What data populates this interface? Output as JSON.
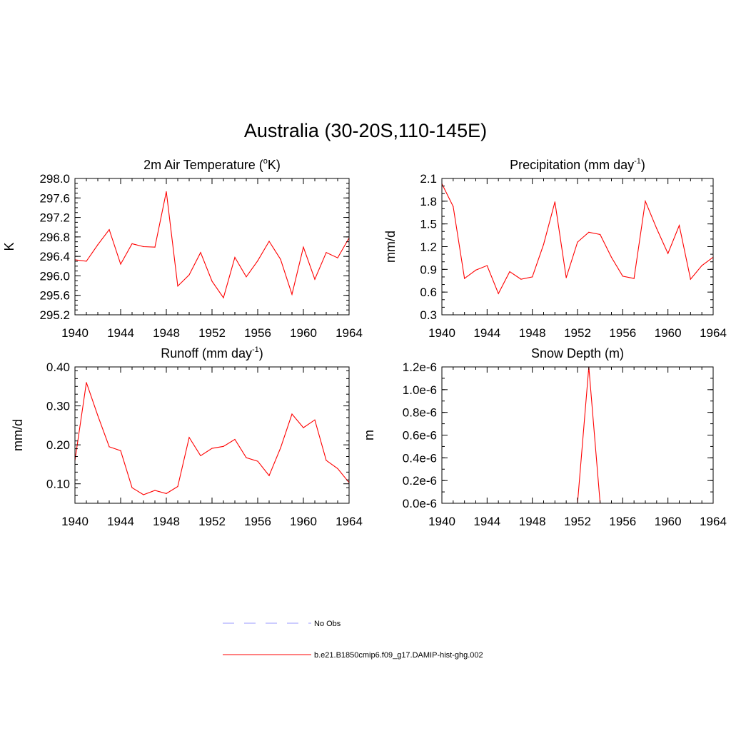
{
  "title": "Australia (30-20S,110-145E)",
  "colors": {
    "series": "#ff0000",
    "obs": "#9999ff",
    "axis": "#000000"
  },
  "chart_data": [
    {
      "type": "line",
      "title_main": "2m Air Temperature (",
      "title_sup": "o",
      "title_tail": "K)",
      "ylabel": "K",
      "xlim": [
        1940,
        1964
      ],
      "ylim": [
        295.2,
        298.0
      ],
      "xticks": [
        1940,
        1944,
        1948,
        1952,
        1956,
        1960,
        1964
      ],
      "xtick_labels": [
        "1940",
        "1944",
        "1948",
        "1952",
        "1956",
        "1960",
        "1964"
      ],
      "yticks": [
        295.2,
        295.6,
        296.0,
        296.4,
        296.8,
        297.2,
        297.6,
        298.0
      ],
      "ytick_labels": [
        "295.2",
        "295.6",
        "296.0",
        "296.4",
        "296.8",
        "297.2",
        "297.6",
        "298.0"
      ],
      "yminor": 0.1,
      "x": [
        1940,
        1941,
        1942,
        1943,
        1944,
        1945,
        1946,
        1947,
        1948,
        1949,
        1950,
        1951,
        1952,
        1953,
        1954,
        1955,
        1956,
        1957,
        1958,
        1959,
        1960,
        1961,
        1962,
        1963,
        1964
      ],
      "values": [
        296.33,
        296.3,
        296.64,
        296.95,
        296.24,
        296.66,
        296.6,
        296.59,
        297.73,
        295.79,
        296.02,
        296.48,
        295.89,
        295.55,
        296.38,
        295.98,
        296.31,
        296.71,
        296.34,
        295.62,
        296.59,
        295.93,
        296.48,
        296.37,
        296.78
      ]
    },
    {
      "type": "line",
      "title_main": "Precipitation (mm day",
      "title_sup": "-1",
      "title_tail": ")",
      "ylabel": "mm/d",
      "xlim": [
        1940,
        1964
      ],
      "ylim": [
        0.3,
        2.1
      ],
      "xticks": [
        1940,
        1944,
        1948,
        1952,
        1956,
        1960,
        1964
      ],
      "xtick_labels": [
        "1940",
        "1944",
        "1948",
        "1952",
        "1956",
        "1960",
        "1964"
      ],
      "yticks": [
        0.3,
        0.6,
        0.9,
        1.2,
        1.5,
        1.8,
        2.1
      ],
      "ytick_labels": [
        "0.3",
        "0.6",
        "0.9",
        "1.2",
        "1.5",
        "1.8",
        "2.1"
      ],
      "yminor": 0.1,
      "x": [
        1940,
        1941,
        1942,
        1943,
        1944,
        1945,
        1946,
        1947,
        1948,
        1949,
        1950,
        1951,
        1952,
        1953,
        1954,
        1955,
        1956,
        1957,
        1958,
        1959,
        1960,
        1961,
        1962,
        1963,
        1964
      ],
      "values": [
        2.03,
        1.73,
        0.78,
        0.89,
        0.95,
        0.58,
        0.87,
        0.77,
        0.8,
        1.23,
        1.79,
        0.79,
        1.26,
        1.39,
        1.36,
        1.06,
        0.81,
        0.78,
        1.8,
        1.44,
        1.11,
        1.48,
        0.77,
        0.95,
        1.06
      ]
    },
    {
      "type": "line",
      "title_main": "Runoff (mm day",
      "title_sup": "-1",
      "title_tail": ")",
      "ylabel": "mm/d",
      "xlim": [
        1940,
        1964
      ],
      "ylim": [
        0.05,
        0.4
      ],
      "xticks": [
        1940,
        1944,
        1948,
        1952,
        1956,
        1960,
        1964
      ],
      "xtick_labels": [
        "1940",
        "1944",
        "1948",
        "1952",
        "1956",
        "1960",
        "1964"
      ],
      "yticks": [
        0.1,
        0.2,
        0.3,
        0.4
      ],
      "ytick_labels": [
        "0.10",
        "0.20",
        "0.30",
        "0.40"
      ],
      "yminor": 0.02,
      "x": [
        1940,
        1941,
        1942,
        1943,
        1944,
        1945,
        1946,
        1947,
        1948,
        1949,
        1950,
        1951,
        1952,
        1953,
        1954,
        1955,
        1956,
        1957,
        1958,
        1959,
        1960,
        1961,
        1962,
        1963,
        1964
      ],
      "values": [
        0.16,
        0.36,
        0.275,
        0.195,
        0.185,
        0.09,
        0.072,
        0.083,
        0.075,
        0.093,
        0.219,
        0.172,
        0.191,
        0.196,
        0.214,
        0.167,
        0.158,
        0.121,
        0.192,
        0.279,
        0.244,
        0.264,
        0.16,
        0.139,
        0.103
      ]
    },
    {
      "type": "line",
      "title_main": "Snow Depth (m)",
      "title_sup": "",
      "title_tail": "",
      "ylabel": "m",
      "xlim": [
        1940,
        1964
      ],
      "ylim": [
        0.0,
        1.2e-06
      ],
      "xticks": [
        1940,
        1944,
        1948,
        1952,
        1956,
        1960,
        1964
      ],
      "xtick_labels": [
        "1940",
        "1944",
        "1948",
        "1952",
        "1956",
        "1960",
        "1964"
      ],
      "yticks": [
        0.0,
        2e-07,
        4e-07,
        6e-07,
        8e-07,
        1e-06,
        1.2e-06
      ],
      "ytick_labels": [
        "0.0e-6",
        "0.2e-6",
        "0.4e-6",
        "0.6e-6",
        "0.8e-6",
        "1.0e-6",
        "1.2e-6"
      ],
      "yminor": 1e-07,
      "x": [
        1940,
        1941,
        1942,
        1943,
        1944,
        1945,
        1946,
        1947,
        1948,
        1949,
        1950,
        1951,
        1952,
        1953,
        1954,
        1955,
        1956,
        1957,
        1958,
        1959,
        1960,
        1961,
        1962,
        1963,
        1964
      ],
      "values": [
        0,
        0,
        0,
        0,
        0,
        0,
        0,
        0,
        0,
        0,
        0,
        0,
        0,
        1.2e-06,
        0,
        0,
        0,
        0,
        0,
        0,
        0,
        0,
        0,
        0,
        0
      ]
    }
  ],
  "legend": [
    {
      "label": "No Obs",
      "style": "dashed",
      "color": "#9999ff"
    },
    {
      "label": "b.e21.B1850cmip6.f09_g17.DAMIP-hist-ghg.002",
      "style": "solid",
      "color": "#ff0000"
    }
  ]
}
